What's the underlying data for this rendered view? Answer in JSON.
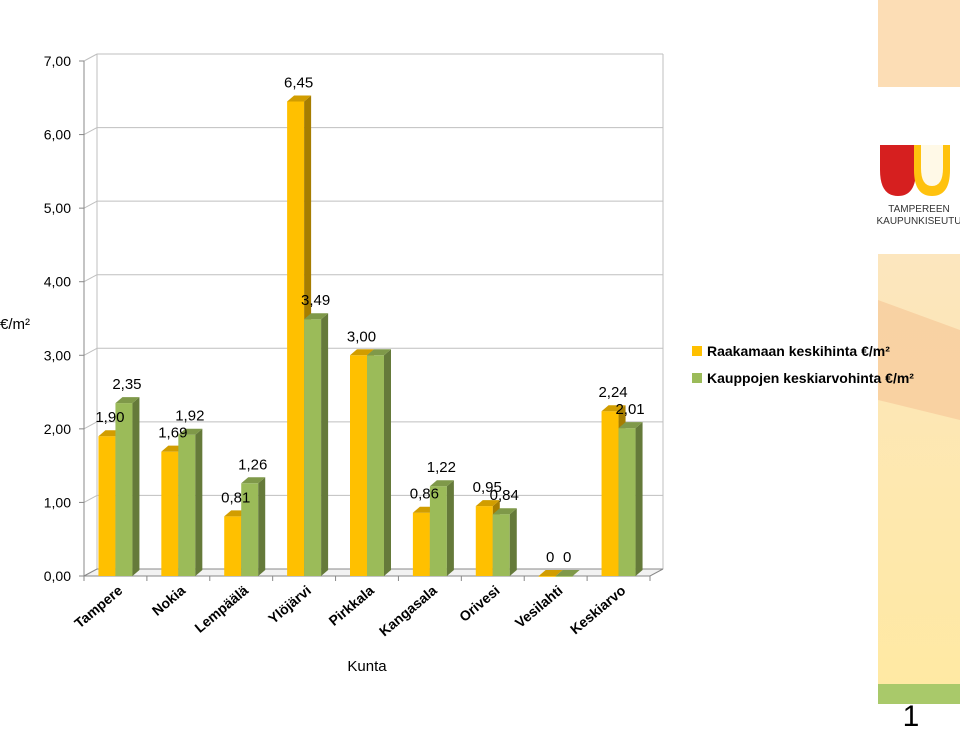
{
  "chart_data": {
    "type": "bar",
    "title": "",
    "xlabel": "Kunta",
    "ylabel": "€/m²",
    "ylim": [
      0,
      7
    ],
    "yticks": [
      "0,00",
      "1,00",
      "2,00",
      "3,00",
      "4,00",
      "5,00",
      "6,00",
      "7,00"
    ],
    "categories": [
      "Tampere",
      "Nokia",
      "Lempäälä",
      "Ylöjärvi",
      "Pirkkala",
      "Kangasala",
      "Orivesi",
      "Vesilahti",
      "Keskiarvo"
    ],
    "series": [
      {
        "name": "Raakamaan keskihinta €/m²",
        "color": "#FFC000",
        "values": [
          1.9,
          1.69,
          0.81,
          6.45,
          3.0,
          0.86,
          0.95,
          0,
          2.24
        ],
        "labels": [
          "1,90",
          "1,69",
          "0,81",
          "6,45",
          "3,00",
          "0,86",
          "0,95",
          "0",
          "2,24"
        ]
      },
      {
        "name": "Kauppojen keskiarvohinta €/m²",
        "color": "#9BBB59",
        "values": [
          2.35,
          1.92,
          1.26,
          3.49,
          3.0,
          1.22,
          0.84,
          0,
          2.01
        ],
        "labels": [
          "2,35",
          "1,92",
          "1,26",
          "3,49",
          "",
          "1,22",
          "0,84",
          "0",
          "2,01"
        ]
      }
    ],
    "grid": true,
    "legend": "right",
    "style": "3d-clustered-column"
  },
  "logo": {
    "line1": "TAMPEREEN",
    "line2": "KAUPUNKISEUTU"
  },
  "slide": {
    "page_number": "1"
  }
}
